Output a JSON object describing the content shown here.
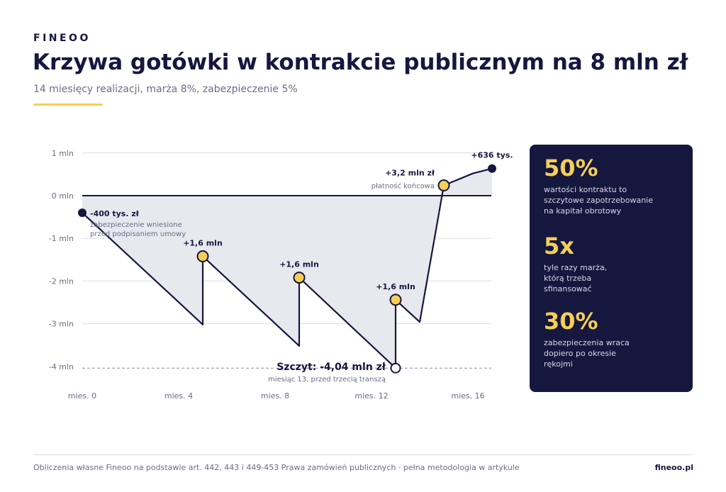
{
  "header": {
    "brand": "FINEOO",
    "title": "Krzywa gotówki w kontrakcie publicznym na 8 mln zł",
    "subtitle": "14 miesięcy realizacji, marża 8%, zabezpieczenie 5%"
  },
  "colors": {
    "navy": "#16173f",
    "accent": "#f5cf55",
    "area": "#e8e8ef",
    "grid": "#dcdce4",
    "muted": "#6b6d86"
  },
  "chart_data": {
    "type": "line",
    "xlabel": "",
    "ylabel": "",
    "xlim": [
      0,
      17
    ],
    "ylim": [
      -4.2,
      1.1
    ],
    "y_ticks": [
      {
        "value": 1,
        "label": "1 mln"
      },
      {
        "value": 0,
        "label": "0 mln"
      },
      {
        "value": -1,
        "label": "-1 mln"
      },
      {
        "value": -2,
        "label": "-2 mln"
      },
      {
        "value": -3,
        "label": "-3 mln"
      },
      {
        "value": -4,
        "label": "-4 mln"
      }
    ],
    "x_ticks": [
      {
        "value": 0,
        "label": "mies. 0"
      },
      {
        "value": 4,
        "label": "mies. 4"
      },
      {
        "value": 8,
        "label": "mies. 8"
      },
      {
        "value": 12,
        "label": "mies. 12"
      },
      {
        "value": 16,
        "label": "mies. 16"
      }
    ],
    "series": [
      {
        "points": [
          {
            "x": 0,
            "y": -0.4
          },
          {
            "x": 5,
            "y": -3.02
          },
          {
            "x": 5,
            "y": -1.42
          },
          {
            "x": 9,
            "y": -3.52
          },
          {
            "x": 9,
            "y": -1.92
          },
          {
            "x": 13,
            "y": -4.04
          },
          {
            "x": 13,
            "y": -2.44
          },
          {
            "x": 14,
            "y": -2.96
          },
          {
            "x": 15,
            "y": 0.24
          },
          {
            "x": 16.2,
            "y": 0.52
          },
          {
            "x": 17,
            "y": 0.636
          }
        ]
      }
    ],
    "peak_line": -4.04,
    "annotations": [
      {
        "x": 0,
        "y": -0.4,
        "marker": "navy",
        "label": "-400 tys. zł",
        "note": "zabezpieczenie wniesione\nprzed podpisaniem umowy",
        "pos": "right"
      },
      {
        "x": 5,
        "y": -1.42,
        "marker": "yellow",
        "label": "+1,6 mln",
        "note": "",
        "pos": "above"
      },
      {
        "x": 9,
        "y": -1.92,
        "marker": "yellow",
        "label": "+1,6 mln",
        "note": "",
        "pos": "above"
      },
      {
        "x": 13,
        "y": -2.44,
        "marker": "yellow",
        "label": "+1,6 mln",
        "note": "",
        "pos": "above"
      },
      {
        "x": 13,
        "y": -4.04,
        "marker": "white",
        "label": "Szczyt: -4,04 mln zł",
        "note": "miesiąc 13, przed trzecią transzą",
        "pos": "peak"
      },
      {
        "x": 15,
        "y": 0.24,
        "marker": "yellow",
        "label": "+3,2 mln zł",
        "note": "płatność końcowa",
        "pos": "left"
      },
      {
        "x": 17,
        "y": 0.636,
        "marker": "navy",
        "label": "+636 tys.",
        "note": "",
        "pos": "above"
      }
    ]
  },
  "stats": [
    {
      "value": "50%",
      "desc": "wartości kontraktu to szczytowe zapotrzebowanie na kapitał obrotowy"
    },
    {
      "value": "5x",
      "desc": "tyle razy marża, którą trzeba sfinansować"
    },
    {
      "value": "30%",
      "desc": "zabezpieczenia wraca dopiero po okresie rękojmi"
    }
  ],
  "footer": {
    "source": "Obliczenia własne Fineoo na podstawie art. 442, 443 i 449-453 Prawa zamówień publicznych · pełna metodologia w artykule",
    "site": "fineoo.pl"
  }
}
